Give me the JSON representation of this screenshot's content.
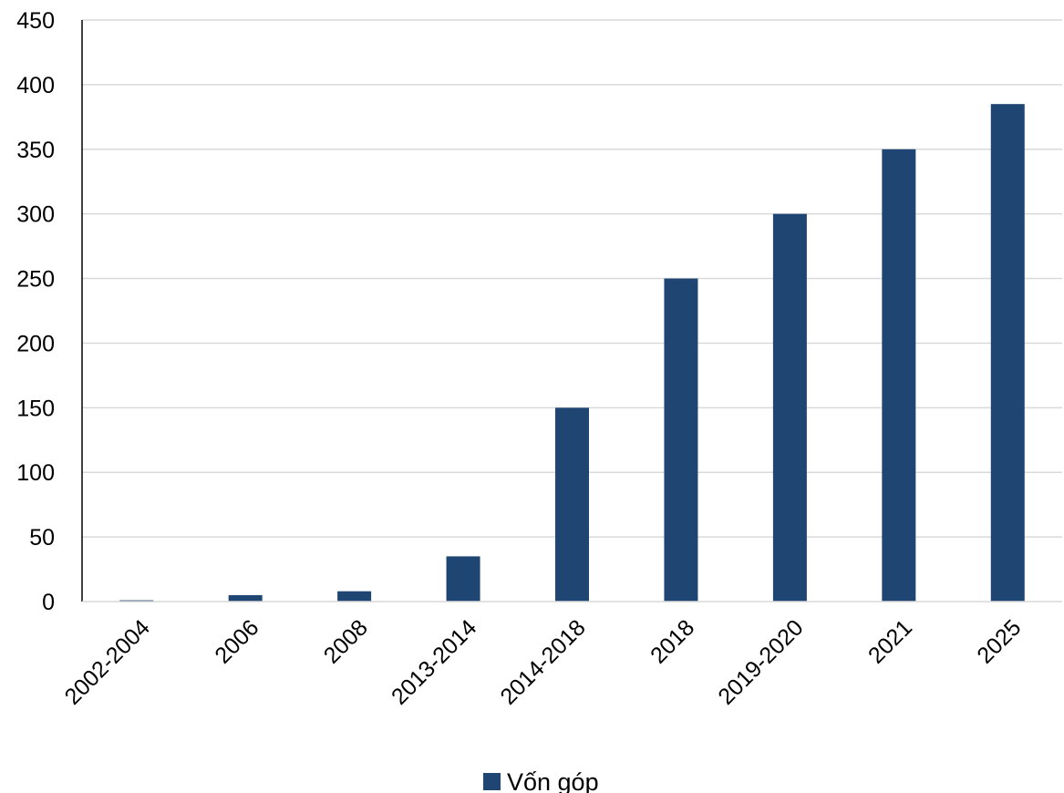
{
  "chart_data": {
    "type": "bar",
    "title": "",
    "xlabel": "",
    "ylabel": "",
    "categories": [
      "2002-2004",
      "2006",
      "2008",
      "2013-2014",
      "2014-2018",
      "2018",
      "2019-2020",
      "2021",
      "2025"
    ],
    "series": [
      {
        "name": "Vốn góp",
        "color": "#1F4673",
        "values": [
          1,
          5,
          8,
          35,
          150,
          250,
          300,
          350,
          385
        ]
      }
    ],
    "ylim": [
      0,
      450
    ],
    "yticks": [
      0,
      50,
      100,
      150,
      200,
      250,
      300,
      350,
      400,
      450
    ],
    "grid": true,
    "legend_position": "bottom-center"
  }
}
